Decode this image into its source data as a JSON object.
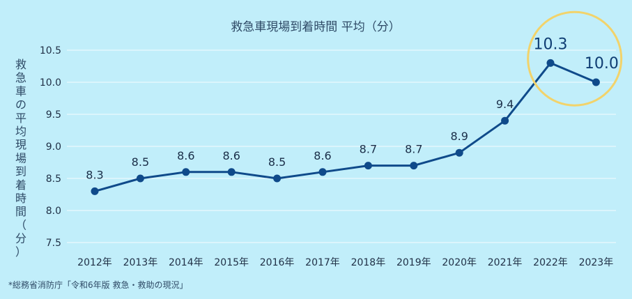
{
  "chart_data": {
    "type": "line",
    "title": "救急車現場到着時間 平均（分）",
    "ylabel": "救急車の平均現場到着時間（分）",
    "xlabel": "",
    "categories": [
      "2012年",
      "2013年",
      "2014年",
      "2015年",
      "2016年",
      "2017年",
      "2018年",
      "2019年",
      "2020年",
      "2021年",
      "2022年",
      "2023年"
    ],
    "series": [
      {
        "values": [
          8.3,
          8.5,
          8.6,
          8.6,
          8.5,
          8.6,
          8.7,
          8.7,
          8.9,
          9.4,
          10.3,
          10.0
        ]
      }
    ],
    "data_labels": [
      "8.3",
      "8.5",
      "8.6",
      "8.6",
      "8.5",
      "8.6",
      "8.7",
      "8.7",
      "8.9",
      "9.4",
      "10.3",
      "10.0"
    ],
    "ylim": [
      7.5,
      10.5
    ],
    "yticks": [
      "7.5",
      "8.0",
      "8.5",
      "9.0",
      "9.5",
      "10.0",
      "10.5"
    ],
    "grid": true,
    "highlighted_years": [
      "2022年",
      "2023年"
    ],
    "colors": {
      "line": "#0f4a8a",
      "highlight_circle": "#f2d36b",
      "background": "#c1eefa"
    },
    "source_note": "*総務省消防庁「令和6年版 救急・救助の現況」"
  }
}
